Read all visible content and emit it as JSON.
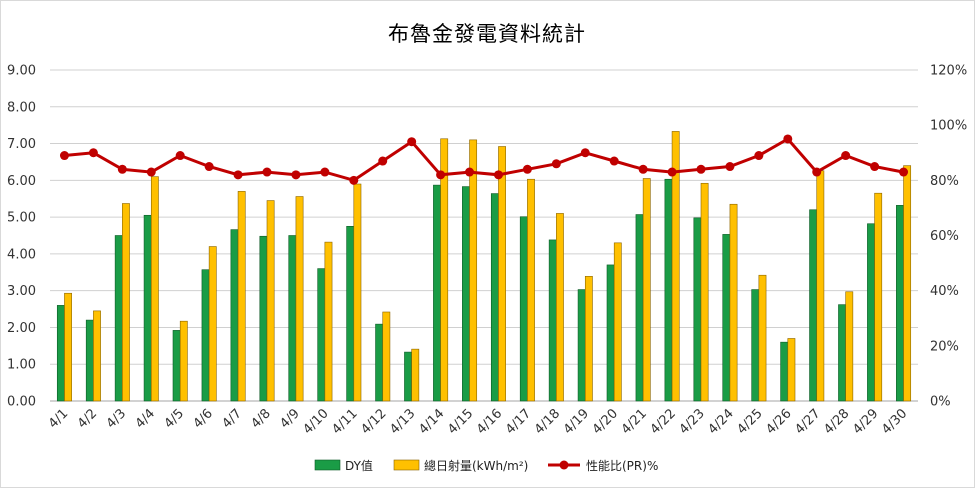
{
  "chart_data": {
    "type": "bar",
    "title": "布魯金發電資料統計",
    "categories": [
      "4/1",
      "4/2",
      "4/3",
      "4/4",
      "4/5",
      "4/6",
      "4/7",
      "4/8",
      "4/9",
      "4/10",
      "4/11",
      "4/12",
      "4/13",
      "4/14",
      "4/15",
      "4/16",
      "4/17",
      "4/18",
      "4/19",
      "4/20",
      "4/21",
      "4/22",
      "4/23",
      "4/24",
      "4/25",
      "4/26",
      "4/27",
      "4/28",
      "4/29",
      "4/30"
    ],
    "y_left": {
      "ticks": [
        "0.00",
        "1.00",
        "2.00",
        "3.00",
        "4.00",
        "5.00",
        "6.00",
        "7.00",
        "8.00",
        "9.00"
      ],
      "ylim": [
        0,
        9
      ]
    },
    "y_right": {
      "ticks": [
        "0%",
        "20%",
        "40%",
        "60%",
        "80%",
        "100%",
        "120%"
      ],
      "ylim": [
        0,
        120
      ]
    },
    "grid": true,
    "legend_position": "bottom",
    "series": [
      {
        "name": "DY值",
        "kind": "bar",
        "axis": "left",
        "color": "#1a9c46",
        "values": [
          2.6,
          2.2,
          4.5,
          5.05,
          1.92,
          3.57,
          4.66,
          4.48,
          4.5,
          3.6,
          4.75,
          2.09,
          1.33,
          5.87,
          5.83,
          5.64,
          5.01,
          4.38,
          3.03,
          3.7,
          5.07,
          6.03,
          4.98,
          4.53,
          3.03,
          1.6,
          5.2,
          2.62,
          4.82,
          5.32
        ]
      },
      {
        "name": "總日射量(kWh/m²)",
        "kind": "bar",
        "axis": "left",
        "color": "#ffc000",
        "values": [
          2.93,
          2.45,
          5.37,
          6.1,
          2.17,
          4.2,
          5.7,
          5.45,
          5.56,
          4.32,
          5.9,
          2.42,
          1.41,
          7.13,
          7.1,
          6.92,
          6.03,
          5.1,
          3.39,
          4.3,
          6.05,
          7.33,
          5.92,
          5.35,
          3.42,
          1.7,
          6.26,
          2.97,
          5.65,
          6.4
        ]
      },
      {
        "name": "性能比(PR)%",
        "kind": "line",
        "axis": "right",
        "color": "#c00000",
        "values": [
          89,
          90,
          84,
          83,
          89,
          85,
          82,
          83,
          82,
          83,
          80,
          87,
          94,
          82,
          83,
          82,
          84,
          86,
          90,
          87,
          84,
          83,
          84,
          85,
          89,
          95,
          83,
          89,
          85,
          83
        ]
      }
    ]
  }
}
